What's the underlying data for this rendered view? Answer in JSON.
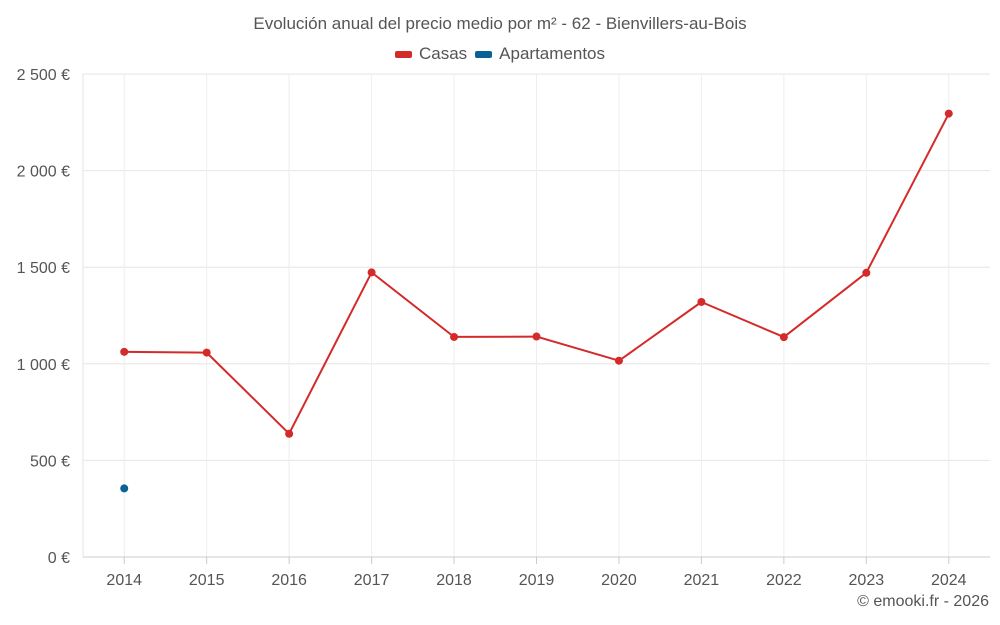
{
  "chart_data": {
    "type": "line",
    "title": "Evolución anual del precio medio por m² - 62 - Bienvillers-au-Bois",
    "x": [
      "2014",
      "2015",
      "2016",
      "2017",
      "2018",
      "2019",
      "2020",
      "2021",
      "2022",
      "2023",
      "2024"
    ],
    "series": [
      {
        "name": "Casas",
        "color": "#d42a2a",
        "values": [
          1062,
          1058,
          638,
          1473,
          1139,
          1141,
          1016,
          1320,
          1138,
          1471,
          2295
        ]
      },
      {
        "name": "Apartamentos",
        "color": "#0a6196",
        "values": [
          355,
          null,
          null,
          null,
          null,
          null,
          null,
          null,
          null,
          null,
          null
        ]
      }
    ],
    "yticks": [
      0,
      500,
      1000,
      1500,
      2000,
      2500
    ],
    "ytick_labels": [
      "0 €",
      "500 €",
      "1 000 €",
      "1 500 €",
      "2 000 €",
      "2 500 €"
    ],
    "ylim": [
      0,
      2500
    ],
    "grid": true,
    "legend_position": "top-center",
    "xlabel": "",
    "ylabel": ""
  },
  "credit": "© emooki.fr - 2026"
}
